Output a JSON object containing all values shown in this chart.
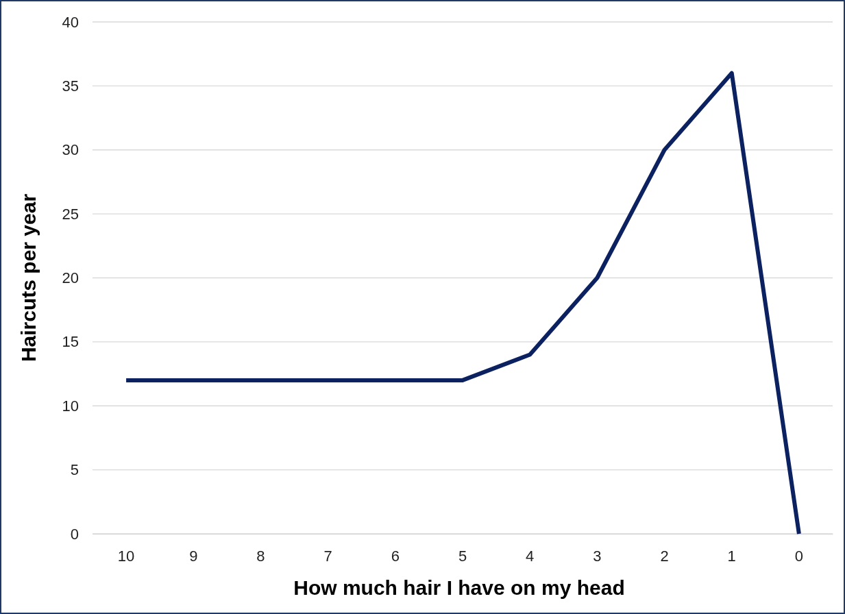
{
  "chart_data": {
    "type": "line",
    "xlabel": "How much hair I have on my head",
    "ylabel": "Haircuts per year",
    "categories": [
      "10",
      "9",
      "8",
      "7",
      "6",
      "5",
      "4",
      "3",
      "2",
      "1",
      "0"
    ],
    "series": [
      {
        "color": "#0b2160",
        "values": [
          12,
          12,
          12,
          12,
          12,
          12,
          14,
          20,
          30,
          36,
          0
        ]
      }
    ],
    "ylim": [
      0,
      40
    ],
    "yticks": [
      0,
      5,
      10,
      15,
      20,
      25,
      30,
      35,
      40
    ],
    "grid": "y",
    "marker": "none",
    "line_style": "solid"
  }
}
